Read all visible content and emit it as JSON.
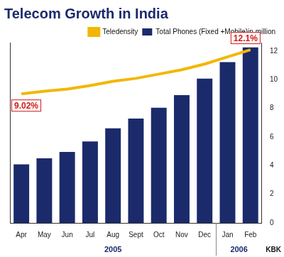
{
  "chart_data": {
    "type": "bar",
    "title": "Telecom Growth in India",
    "categories": [
      "Apr",
      "May",
      "Jun",
      "Jul",
      "Aug",
      "Sept",
      "Oct",
      "Nov",
      "Dec",
      "Jan",
      "Feb"
    ],
    "series": [
      {
        "name": "Total Phones (Fixed +Mobile)in million",
        "type": "bar",
        "color": "#1b2a6b",
        "axis": "y2",
        "values": [
          99.17,
          101.05,
          103.05,
          106.29,
          110.37,
          113.39,
          116.77,
          120.67,
          125.79,
          130.91,
          135.5
        ],
        "data_labels": true
      },
      {
        "name": "Teledensity",
        "type": "line",
        "color": "#f2b705",
        "axis": "y",
        "values": [
          9.02,
          9.2,
          9.35,
          9.6,
          9.9,
          10.1,
          10.4,
          10.7,
          11.1,
          11.6,
          12.1
        ],
        "value_labels": [
          "9.02%",
          null,
          null,
          null,
          null,
          null,
          null,
          null,
          null,
          null,
          "12.1%"
        ]
      }
    ],
    "ylim": [
      0,
      12.6
    ],
    "yticks": [
      0,
      2,
      4,
      6,
      8,
      10,
      12
    ],
    "y2lim": [
      81,
      137
    ],
    "grid": false,
    "legend": "top-right",
    "annotations": [
      {
        "text": "2005",
        "from": "Apr",
        "to": "Dec"
      },
      {
        "text": "2006",
        "from": "Jan",
        "to": "Feb"
      }
    ],
    "credit": "KBK"
  }
}
